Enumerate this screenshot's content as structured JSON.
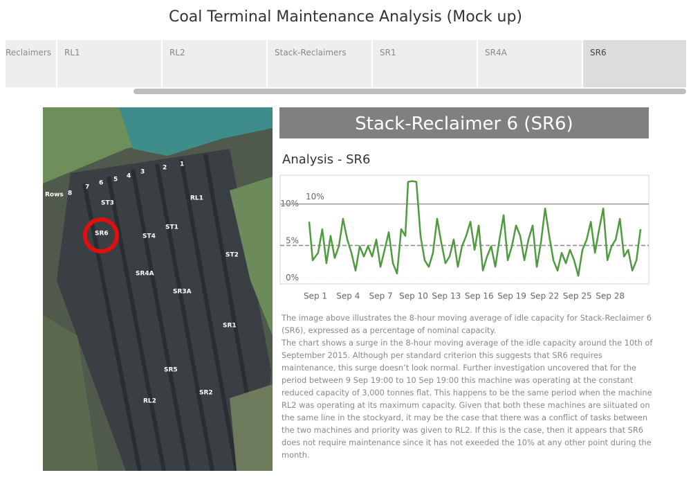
{
  "header": {
    "title": "Coal Terminal Maintenance Analysis (Mock up)"
  },
  "tabs": [
    "Reclaimers",
    "RL1",
    "RL2",
    "Stack-Reclaimers",
    "SR1",
    "SR4A",
    "SR6"
  ],
  "map": {
    "labels": [
      "Rows",
      "8",
      "7",
      "6",
      "5",
      "4",
      "3",
      "2",
      "1",
      "ST3",
      "RL1",
      "SR6",
      "ST4",
      "ST1",
      "ST2",
      "SR4A",
      "SR3A",
      "SR1",
      "SR5",
      "SR2",
      "RL2"
    ]
  },
  "panel": {
    "title": "Stack-Reclaimer 6 (SR6)"
  },
  "chart_data": {
    "type": "line",
    "title": "Analysis - SR6",
    "color": "#4e9a3e",
    "x": [
      0.43,
      0.75,
      1.25,
      1.63,
      2.01,
      2.39,
      2.77,
      3.15,
      3.53,
      3.92,
      4.3,
      4.68,
      5.06,
      5.44,
      5.82,
      6.2,
      6.58,
      6.96,
      7.34,
      7.72,
      8.1,
      8.48,
      8.86,
      9.24,
      9.49,
      9.87,
      10.25,
      10.63,
      11.01,
      11.39,
      11.77,
      12.15,
      12.53,
      12.91,
      13.29,
      13.67,
      14.05,
      14.43,
      14.81,
      15.2,
      15.58,
      15.96,
      16.34,
      16.72,
      17.1,
      17.48,
      17.86,
      18.24,
      18.62,
      19.0,
      19.38,
      19.76,
      20.14,
      20.52,
      20.9,
      21.28,
      21.66,
      22.04,
      22.42,
      22.8,
      23.18,
      23.56,
      23.94,
      24.32,
      24.7,
      25.08,
      25.46,
      25.85,
      26.23,
      26.61,
      26.99,
      27.37,
      27.75,
      28.13,
      28.51,
      28.89,
      29.27,
      29.65,
      30.03,
      30.41,
      30.78
    ],
    "values": [
      7.6,
      2.4,
      3.4,
      6.6,
      2.0,
      5.7,
      2.7,
      4.3,
      8.0,
      5.2,
      3.4,
      1.0,
      4.3,
      2.9,
      4.3,
      2.9,
      5.2,
      1.5,
      3.8,
      6.2,
      2.0,
      0.6,
      6.6,
      5.7,
      13.0,
      13.1,
      13.0,
      5.7,
      2.4,
      1.5,
      3.4,
      8.0,
      4.8,
      2.0,
      2.9,
      5.2,
      1.5,
      4.3,
      5.7,
      7.6,
      3.8,
      7.1,
      1.0,
      2.9,
      4.3,
      1.5,
      5.2,
      8.5,
      2.4,
      4.3,
      7.1,
      5.7,
      2.4,
      5.2,
      7.1,
      1.5,
      4.8,
      9.4,
      5.7,
      2.4,
      1.0,
      3.4,
      2.0,
      3.8,
      2.4,
      0.3,
      3.8,
      5.2,
      7.6,
      3.4,
      6.6,
      9.4,
      2.4,
      4.3,
      5.2,
      8.0,
      2.9,
      3.8,
      1.0,
      2.4,
      6.6
    ],
    "xlim": [
      -2.23,
      31.54
    ],
    "ylim": [
      -0.8,
      13.9
    ],
    "xticks": [
      {
        "value": 1,
        "label": "Sep 1"
      },
      {
        "value": 4,
        "label": "Sep 4"
      },
      {
        "value": 7,
        "label": "Sep 7"
      },
      {
        "value": 10,
        "label": "Sep 10"
      },
      {
        "value": 13,
        "label": "Sep 13"
      },
      {
        "value": 16,
        "label": "Sep 16"
      },
      {
        "value": 19,
        "label": "Sep 19"
      },
      {
        "value": 22,
        "label": "Sep 22"
      },
      {
        "value": 25,
        "label": "Sep 25"
      },
      {
        "value": 28,
        "label": "Sep 28"
      }
    ],
    "yticks": [
      {
        "value": 0,
        "label": "0%"
      },
      {
        "value": 5,
        "label": "5%"
      },
      {
        "value": 10,
        "label": "10%"
      }
    ],
    "reference_line": {
      "value": 10,
      "label": "10%"
    },
    "average_line": 4.4
  },
  "description": [
    [
      "The image above illustrates the 8-hour moving average of idle capacity for Stack-Reclaimer 6",
      "(SR6), expressed as a percentage of nominal capacity."
    ],
    [
      "The chart shows a surge in the 8-hour moving average of the idle capacity around the 10th of",
      "September 2015. Although per standard criterion this suggests that SR6 requires",
      "maintenance, this surge doesn’t look normal. Further investigation uncovered that for the",
      "period between 9 Sep 19:00 to 10 Sep 19:00 this machine was operating at the constant",
      "reduced capacity of 3,000 tonnes flat. This happens to be the same period when the machine",
      "RL2 was operating at its maximum capacity. Given that both these machines are siituated on",
      "the same line in the stockyard, it may be the case that there was a conflict of tasks between",
      "the two machines and priority was given to RL2. If this is the case, then it appears that SR6",
      "does not require maintenance since it has not exeeded the 10% at any other point during the",
      "month."
    ]
  ]
}
